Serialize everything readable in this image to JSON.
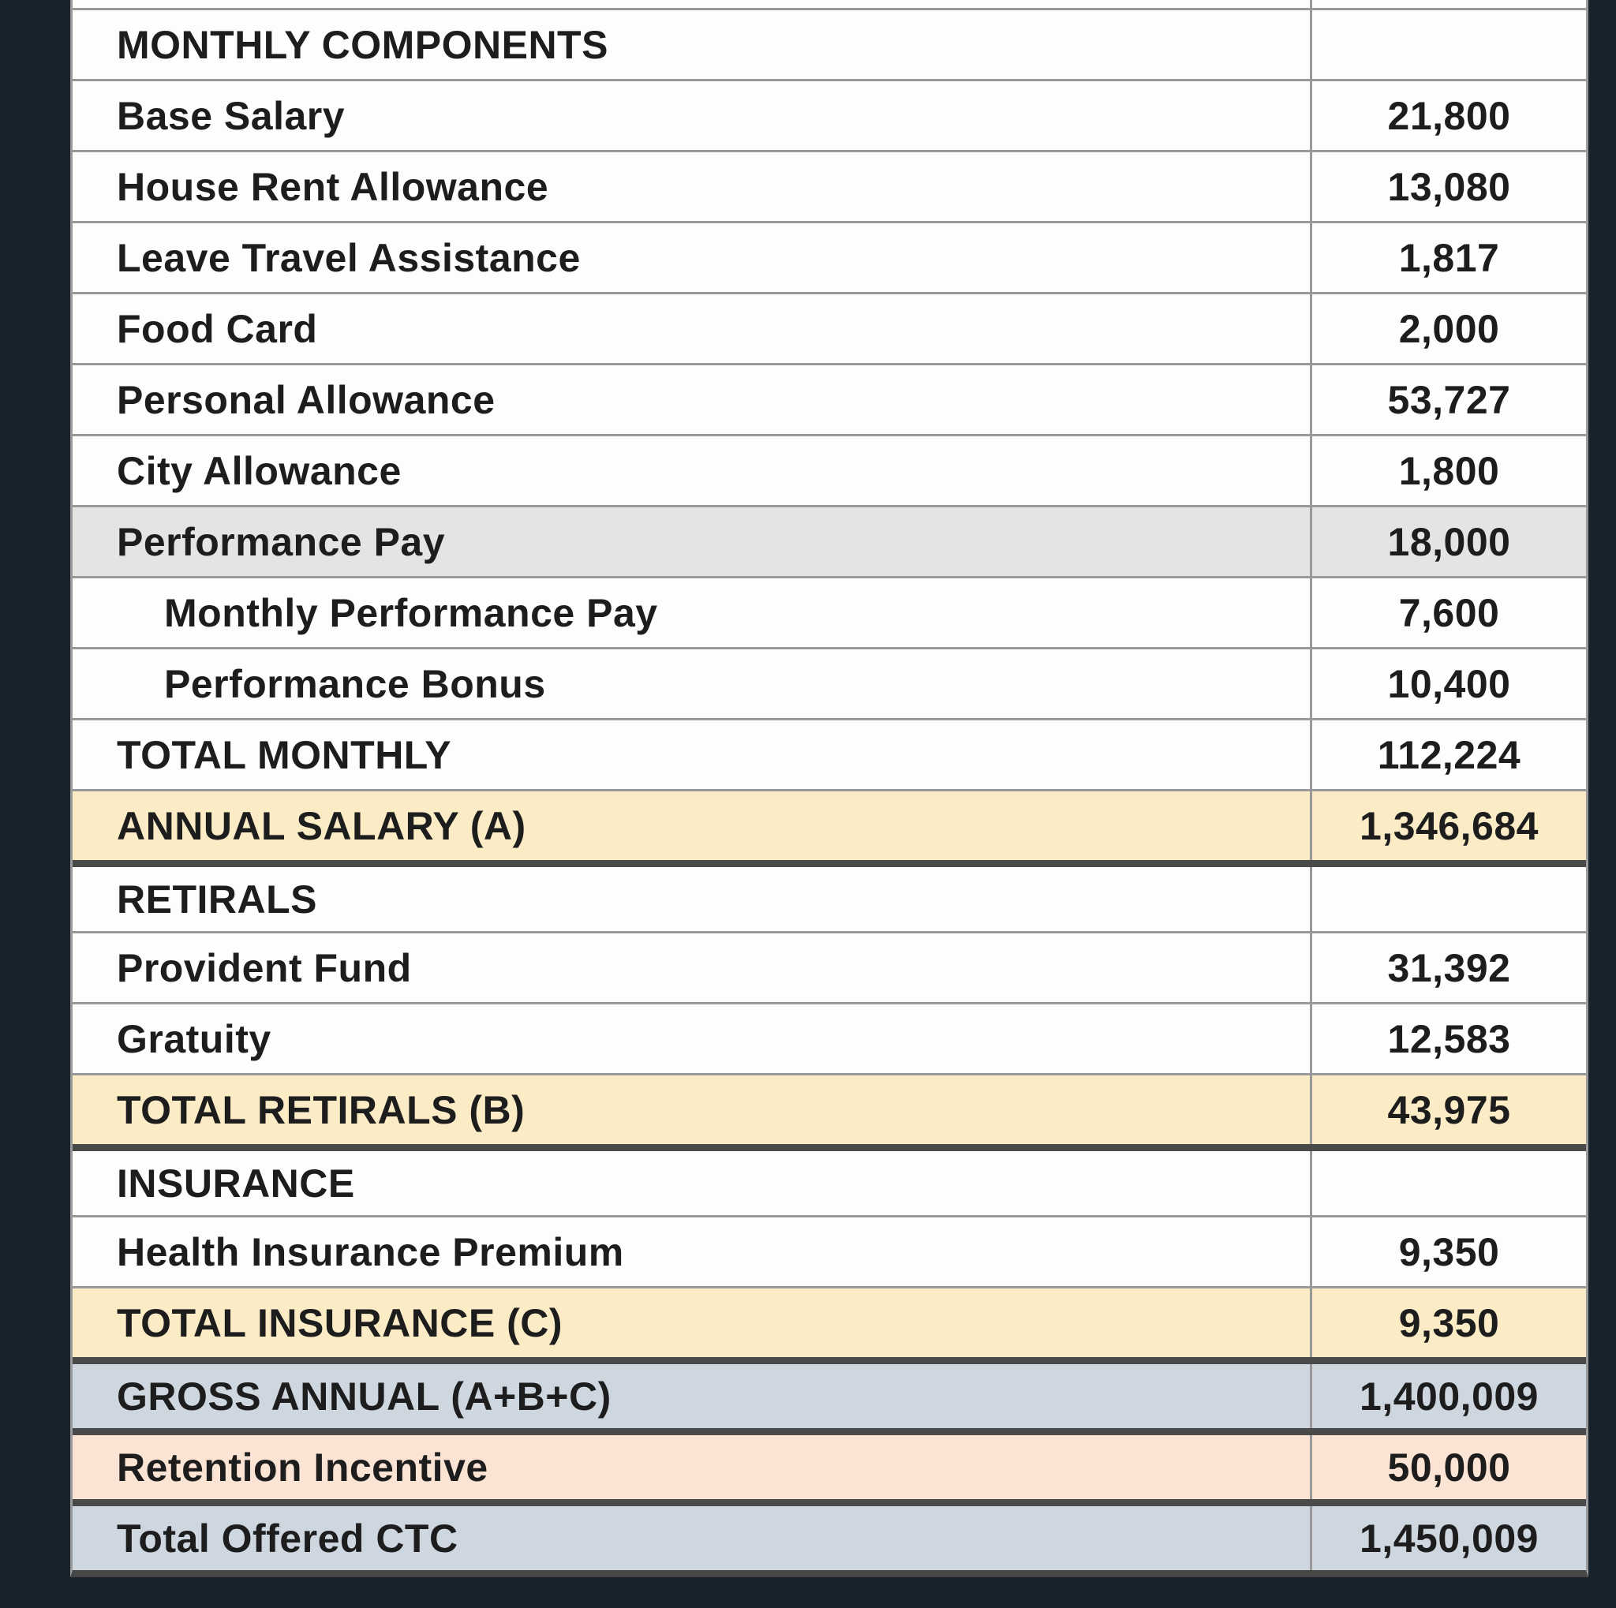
{
  "colors": {
    "page_background": "#18222d",
    "row_white": "#fdfdfd",
    "row_gray_highlight": "#e4e4e4",
    "row_cream_total": "#fbecc6",
    "row_bluegray_total": "#ced6df",
    "row_peach_highlight": "#fce4d4",
    "grid_thin": "#999999",
    "grid_thick": "#4a4a4a",
    "text": "#1d1d1d"
  },
  "table": {
    "rows": [
      {
        "label": "MONTHLY COMPONENTS",
        "value": "",
        "emphasis": "section-header"
      },
      {
        "label": "Base Salary",
        "value": "21,800",
        "emphasis": "none"
      },
      {
        "label": "House Rent Allowance",
        "value": "13,080",
        "emphasis": "none"
      },
      {
        "label": "Leave Travel Assistance",
        "value": "1,817",
        "emphasis": "none"
      },
      {
        "label": "Food Card",
        "value": "2,000",
        "emphasis": "none"
      },
      {
        "label": "Personal Allowance",
        "value": "53,727",
        "emphasis": "none"
      },
      {
        "label": "City Allowance",
        "value": "1,800",
        "emphasis": "none"
      },
      {
        "label": "Performance Pay",
        "value": "18,000",
        "emphasis": "gray"
      },
      {
        "label": "Monthly Performance Pay",
        "value": "7,600",
        "emphasis": "indented"
      },
      {
        "label": "Performance Bonus",
        "value": "10,400",
        "emphasis": "indented"
      },
      {
        "label": "TOTAL MONTHLY",
        "value": "112,224",
        "emphasis": "total"
      },
      {
        "label": "ANNUAL SALARY (A)",
        "value": "1,346,684",
        "emphasis": "cream-total"
      },
      {
        "label": "RETIRALS",
        "value": "",
        "emphasis": "section-header"
      },
      {
        "label": "Provident Fund",
        "value": "31,392",
        "emphasis": "none"
      },
      {
        "label": "Gratuity",
        "value": "12,583",
        "emphasis": "none"
      },
      {
        "label": "TOTAL RETIRALS (B)",
        "value": "43,975",
        "emphasis": "cream-total"
      },
      {
        "label": "INSURANCE",
        "value": "",
        "emphasis": "section-header"
      },
      {
        "label": "Health Insurance Premium",
        "value": "9,350",
        "emphasis": "none"
      },
      {
        "label": "TOTAL INSURANCE (C)",
        "value": "9,350",
        "emphasis": "cream-total"
      },
      {
        "label": "GROSS ANNUAL (A+B+C)",
        "value": "1,400,009",
        "emphasis": "bluegray-total"
      },
      {
        "label": "Retention Incentive",
        "value": "50,000",
        "emphasis": "peach"
      },
      {
        "label": "Total Offered CTC",
        "value": "1,450,009",
        "emphasis": "bluegray-total"
      }
    ]
  }
}
